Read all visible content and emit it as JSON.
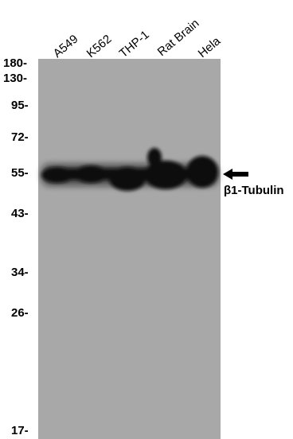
{
  "lanes": [
    {
      "label": "A549"
    },
    {
      "label": "K562"
    },
    {
      "label": "THP-1"
    },
    {
      "label": "Rat Brain"
    },
    {
      "label": "Hela"
    }
  ],
  "markers": [
    {
      "label": "180-",
      "kda": 180
    },
    {
      "label": "130-",
      "kda": 130
    },
    {
      "label": "95-",
      "kda": 95
    },
    {
      "label": "72-",
      "kda": 72
    },
    {
      "label": "55-",
      "kda": 55
    },
    {
      "label": "43-",
      "kda": 43
    },
    {
      "label": "34-",
      "kda": 34
    },
    {
      "label": "26-",
      "kda": 26
    },
    {
      "label": "17-",
      "kda": 17
    }
  ],
  "target": {
    "label": "β1-Tubulin",
    "kda": 55
  },
  "colors": {
    "membrane": "#a8a8a8",
    "band": "#111111",
    "text": "#000000"
  }
}
